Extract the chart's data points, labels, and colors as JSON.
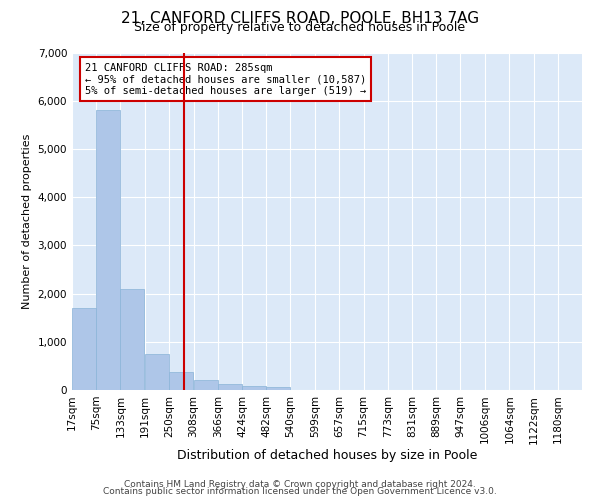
{
  "title1": "21, CANFORD CLIFFS ROAD, POOLE, BH13 7AG",
  "title2": "Size of property relative to detached houses in Poole",
  "xlabel": "Distribution of detached houses by size in Poole",
  "ylabel": "Number of detached properties",
  "footer1": "Contains HM Land Registry data © Crown copyright and database right 2024.",
  "footer2": "Contains public sector information licensed under the Open Government Licence v3.0.",
  "annotation_line1": "21 CANFORD CLIFFS ROAD: 285sqm",
  "annotation_line2": "← 95% of detached houses are smaller (10,587)",
  "annotation_line3": "5% of semi-detached houses are larger (519) →",
  "bar_color": "#aec6e8",
  "bar_edge_color": "#8ab4d8",
  "redline_color": "#cc0000",
  "annotation_box_color": "#cc0000",
  "categories": [
    "17sqm",
    "75sqm",
    "133sqm",
    "191sqm",
    "250sqm",
    "308sqm",
    "366sqm",
    "424sqm",
    "482sqm",
    "540sqm",
    "599sqm",
    "657sqm",
    "715sqm",
    "773sqm",
    "831sqm",
    "889sqm",
    "947sqm",
    "1006sqm",
    "1064sqm",
    "1122sqm",
    "1180sqm"
  ],
  "bin_edges": [
    17,
    75,
    133,
    191,
    250,
    308,
    366,
    424,
    482,
    540,
    599,
    657,
    715,
    773,
    831,
    889,
    947,
    1006,
    1064,
    1122,
    1180
  ],
  "values": [
    1700,
    5800,
    2100,
    750,
    380,
    200,
    130,
    90,
    60,
    0,
    0,
    0,
    0,
    0,
    0,
    0,
    0,
    0,
    0,
    0
  ],
  "ylim": [
    0,
    7000
  ],
  "yticks": [
    0,
    1000,
    2000,
    3000,
    4000,
    5000,
    6000,
    7000
  ],
  "plot_background": "#dce9f8",
  "title1_fontsize": 11,
  "title2_fontsize": 9,
  "ylabel_fontsize": 8,
  "xlabel_fontsize": 9,
  "tick_fontsize": 7.5,
  "footer_fontsize": 6.5
}
